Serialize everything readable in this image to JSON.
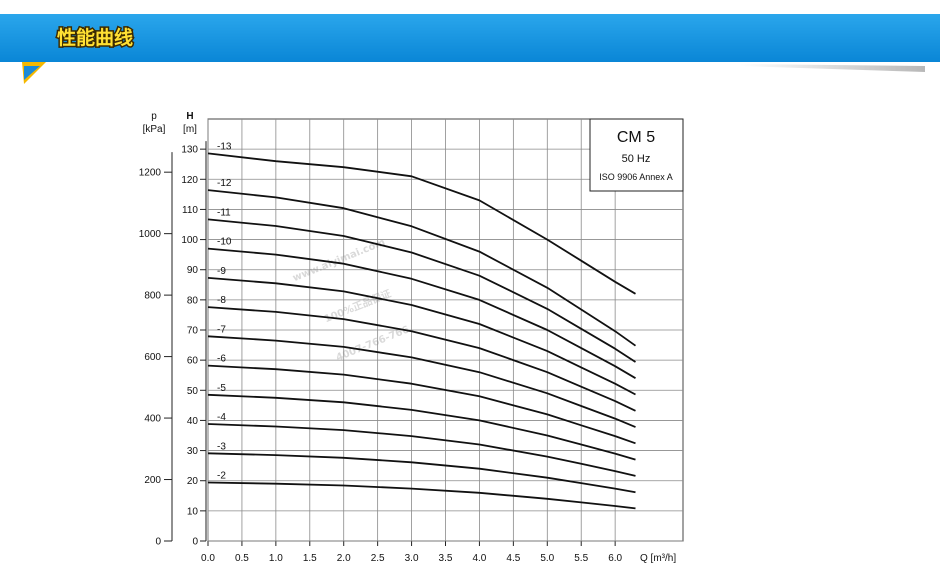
{
  "header": {
    "title": "性能曲线"
  },
  "watermark": [
    "www.aiyimai.com",
    "100%正品保证",
    "4007-766-766"
  ],
  "chart_data": {
    "type": "line",
    "annotations": [
      "CM 5",
      "50 Hz",
      "ISO 9906 Annex A"
    ],
    "x_label": "Q [m³/h]",
    "y_label": "H",
    "y_unit": "[m]",
    "y2_label": "p",
    "y2_unit": "[kPa]",
    "xlim": [
      0,
      7
    ],
    "xticks": [
      {
        "value": 0,
        "label": "0.0"
      },
      0.5,
      {
        "value": 1,
        "label": "1.0"
      },
      1.5,
      {
        "value": 2,
        "label": "2.0"
      },
      2.5,
      {
        "value": 3,
        "label": "3.0"
      },
      3.5,
      {
        "value": 4,
        "label": "4.0"
      },
      4.5,
      {
        "value": 5,
        "label": "5.0"
      },
      5.5,
      {
        "value": 6,
        "label": "6.0"
      }
    ],
    "ylim": [
      0,
      140
    ],
    "yticks": [
      0,
      10,
      20,
      30,
      40,
      50,
      60,
      70,
      80,
      90,
      100,
      110,
      120,
      130
    ],
    "y2lim": [
      0,
      1373
    ],
    "y2ticks": [
      0,
      200,
      400,
      600,
      800,
      1000,
      1200
    ],
    "grid": true,
    "x": [
      0,
      1,
      2,
      3,
      4,
      5,
      5.5,
      6,
      6.3
    ],
    "series": [
      {
        "name": "-13",
        "color": "#111111",
        "values": [
          128.6,
          126,
          124,
          121,
          113,
          100,
          93,
          86,
          82
        ]
      },
      {
        "name": "-12",
        "color": "#111111",
        "values": [
          116.4,
          114,
          110.4,
          104.4,
          96,
          84,
          76.8,
          69.6,
          64.8
        ]
      },
      {
        "name": "-11",
        "color": "#111111",
        "values": [
          106.7,
          104.5,
          101.2,
          95.7,
          88,
          77,
          70.4,
          63.8,
          59.4
        ]
      },
      {
        "name": "-10",
        "color": "#111111",
        "values": [
          97,
          95,
          92,
          87,
          80,
          70,
          64,
          58,
          54
        ]
      },
      {
        "name": "-9",
        "color": "#111111",
        "values": [
          87.3,
          85.5,
          82.8,
          78.3,
          72,
          63,
          57.6,
          52.2,
          48.6
        ]
      },
      {
        "name": "-8",
        "color": "#111111",
        "values": [
          77.6,
          76,
          73.6,
          69.6,
          64,
          56,
          51.2,
          46.4,
          43.2
        ]
      },
      {
        "name": "-7",
        "color": "#111111",
        "values": [
          67.9,
          66.5,
          64.4,
          60.9,
          56,
          49,
          44.8,
          40.6,
          37.8
        ]
      },
      {
        "name": "-6",
        "color": "#111111",
        "values": [
          58.2,
          57,
          55.2,
          52.2,
          48,
          42,
          38.4,
          34.8,
          32.4
        ]
      },
      {
        "name": "-5",
        "color": "#111111",
        "values": [
          48.5,
          47.5,
          46,
          43.5,
          40,
          35,
          32,
          29,
          27
        ]
      },
      {
        "name": "-4",
        "color": "#111111",
        "values": [
          38.8,
          38,
          36.8,
          34.8,
          32,
          28,
          25.6,
          23.2,
          21.6
        ]
      },
      {
        "name": "-3",
        "color": "#111111",
        "values": [
          29.1,
          28.5,
          27.6,
          26.1,
          24,
          21,
          19.2,
          17.4,
          16.2
        ]
      },
      {
        "name": "-2",
        "color": "#111111",
        "values": [
          19.4,
          19,
          18.4,
          17.4,
          16,
          14,
          12.8,
          11.6,
          10.8
        ]
      }
    ]
  }
}
